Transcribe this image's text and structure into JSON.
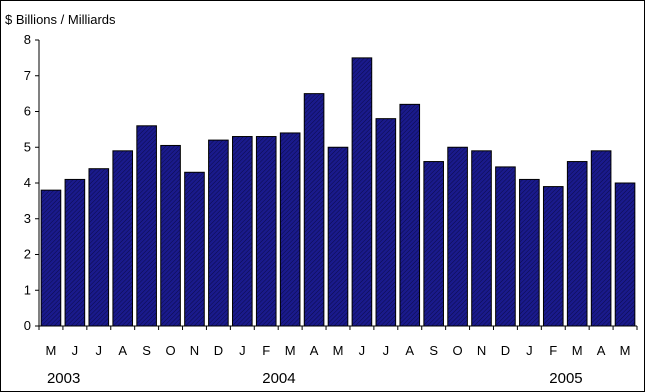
{
  "chart_data": {
    "type": "bar",
    "unit_label": "$ Billions / Milliards",
    "title": "",
    "xlabel": "",
    "ylabel": "",
    "ylim": [
      0,
      8
    ],
    "y_ticks": [
      "0",
      "1",
      "2",
      "3",
      "4",
      "5",
      "6",
      "7",
      "8"
    ],
    "grid": false,
    "legend": "none",
    "categories": [
      "M",
      "J",
      "J",
      "A",
      "S",
      "O",
      "N",
      "D",
      "J",
      "F",
      "M",
      "A",
      "M",
      "J",
      "J",
      "A",
      "S",
      "O",
      "N",
      "D",
      "J",
      "F",
      "M",
      "A",
      "M"
    ],
    "values": [
      3.8,
      4.1,
      4.4,
      4.9,
      5.6,
      5.05,
      4.3,
      5.2,
      5.3,
      5.3,
      5.4,
      6.5,
      5.0,
      7.5,
      5.8,
      6.2,
      4.6,
      5.0,
      4.9,
      4.45,
      4.1,
      3.9,
      4.6,
      4.9,
      4.0
    ],
    "year_labels": [
      {
        "label": "2003",
        "category_index": 0
      },
      {
        "label": "2004",
        "category_index": 9
      },
      {
        "label": "2005",
        "category_index": 21
      }
    ],
    "colors": {
      "bar_fill": "#1a1a8c",
      "bar_hatch": "#0b0b4a",
      "bar_stroke": "#000000",
      "axis": "#000000"
    }
  }
}
